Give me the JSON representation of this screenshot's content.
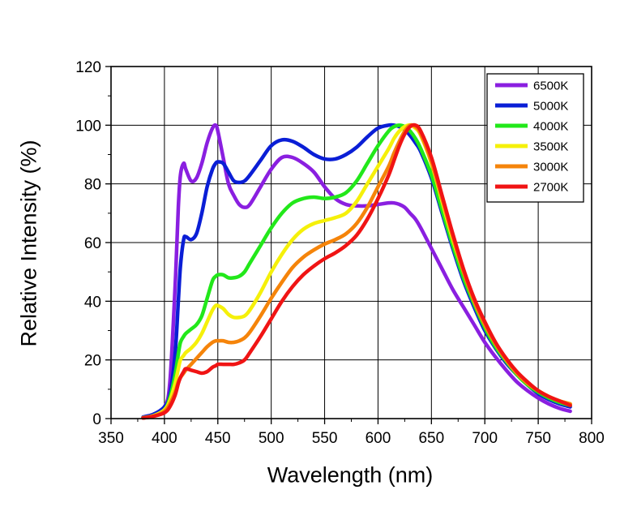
{
  "chart_data": {
    "type": "line",
    "title": "",
    "xlabel": "Wavelength (nm)",
    "ylabel": "Relative Intensity (%)",
    "xlim": [
      350,
      800
    ],
    "ylim": [
      0,
      120
    ],
    "xticks": [
      "350",
      "400",
      "450",
      "500",
      "550",
      "600",
      "650",
      "700",
      "750",
      "800"
    ],
    "yticks": [
      "0",
      "20",
      "40",
      "60",
      "80",
      "100",
      "120"
    ],
    "grid": true,
    "legend_position": "top-right",
    "x": [
      380,
      390,
      400,
      405,
      410,
      413,
      415,
      418,
      420,
      425,
      430,
      435,
      440,
      445,
      448,
      450,
      455,
      460,
      465,
      470,
      475,
      480,
      490,
      500,
      510,
      520,
      530,
      540,
      550,
      560,
      570,
      580,
      590,
      600,
      610,
      615,
      620,
      625,
      630,
      635,
      640,
      650,
      660,
      670,
      680,
      690,
      700,
      710,
      720,
      730,
      740,
      750,
      760,
      770,
      780
    ],
    "series": [
      {
        "name": "6500K",
        "color": "#8a1fe0",
        "values": [
          0.5,
          1.5,
          4,
          12,
          45,
          72,
          83,
          87,
          85,
          81,
          82,
          87,
          94,
          99,
          100,
          98,
          89,
          80,
          76,
          73,
          72,
          73,
          79,
          85,
          89,
          89,
          87,
          84,
          79,
          75,
          73,
          72.5,
          72.5,
          73,
          73.5,
          73.5,
          73,
          72,
          70,
          68,
          65,
          58,
          51,
          44,
          38,
          32,
          26,
          21,
          16.5,
          12.5,
          9.5,
          7,
          5,
          3.5,
          2.5
        ]
      },
      {
        "name": "5000K",
        "color": "#0a1ed6",
        "values": [
          0.5,
          1.5,
          4,
          8,
          22,
          40,
          52,
          61,
          62,
          61,
          63,
          70,
          79,
          85,
          87,
          87.5,
          87,
          84,
          81,
          80.5,
          81,
          83,
          88,
          93,
          95,
          94.5,
          92.5,
          90,
          88.5,
          88.5,
          90,
          92.5,
          96,
          99,
          100,
          100,
          99.5,
          98.5,
          96.5,
          94,
          91,
          82,
          70,
          58,
          47,
          38,
          30,
          24,
          19,
          15,
          11.5,
          8.5,
          6.5,
          5,
          4
        ]
      },
      {
        "name": "4000K",
        "color": "#22e81a",
        "values": [
          0.3,
          1,
          3,
          7,
          15,
          22,
          26,
          28,
          29,
          30.5,
          32,
          35,
          41,
          47,
          48.5,
          49,
          49,
          48,
          48,
          48.5,
          50,
          53,
          59,
          65,
          70,
          73.5,
          75,
          75.5,
          75,
          75.5,
          77,
          81,
          87,
          93,
          98,
          99.5,
          100,
          99.5,
          98,
          95.5,
          92,
          83,
          71,
          59,
          48,
          39,
          31,
          24.5,
          19.5,
          15,
          11.5,
          9,
          7,
          5.5,
          4.5
        ]
      },
      {
        "name": "3500K",
        "color": "#f5f00a",
        "values": [
          0.3,
          1,
          3,
          6,
          12,
          17,
          20,
          21.5,
          22.5,
          24,
          26,
          29,
          33,
          37,
          38.5,
          38.5,
          37.5,
          35.5,
          34.5,
          34.5,
          35,
          37,
          43,
          50,
          56,
          61,
          64.5,
          66.5,
          67.5,
          68.5,
          70,
          74,
          80,
          86,
          92,
          95.5,
          98,
          99.5,
          100,
          99,
          96.5,
          87,
          74,
          61,
          50,
          40,
          32,
          25.5,
          20,
          15.5,
          12,
          9.5,
          7.5,
          6,
          5
        ]
      },
      {
        "name": "3000K",
        "color": "#f5840a",
        "values": [
          0.2,
          0.8,
          2.5,
          5,
          9,
          12.5,
          14,
          15.5,
          16.5,
          18.5,
          20.5,
          22.5,
          24.5,
          26,
          26.5,
          26.5,
          26.5,
          26,
          26,
          26.5,
          27.5,
          29.5,
          35,
          41,
          46.5,
          51.5,
          55,
          57.5,
          59.5,
          61,
          63,
          66.5,
          72,
          79,
          86,
          90.5,
          94.5,
          98,
          100,
          99.5,
          97,
          87.5,
          75,
          62,
          50,
          40,
          32,
          25.5,
          20,
          15.5,
          12,
          9.5,
          7.5,
          6,
          5
        ]
      },
      {
        "name": "2700K",
        "color": "#f01414",
        "values": [
          0.2,
          0.8,
          2,
          4,
          8,
          12,
          14,
          16,
          17,
          16.5,
          16,
          15.5,
          16,
          17.5,
          18,
          18.5,
          18.5,
          18.5,
          18.5,
          19,
          20,
          22.5,
          28,
          34,
          40,
          45,
          49,
          52,
          54.5,
          56.5,
          59,
          62.5,
          68,
          75,
          83,
          88,
          93,
          97,
          99.5,
          100,
          98,
          89,
          76,
          63,
          51,
          41,
          33,
          26,
          20.5,
          16,
          12.5,
          9.5,
          7.5,
          6,
          4.5
        ]
      }
    ]
  }
}
